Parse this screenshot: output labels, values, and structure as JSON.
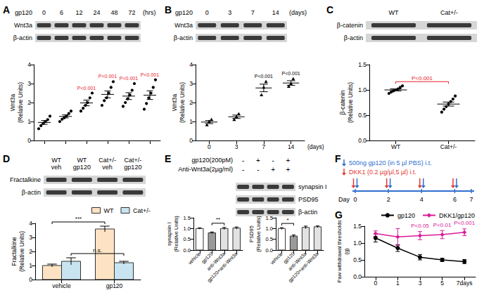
{
  "chart_data": [
    {
      "panel": "A",
      "type": "scatter",
      "blot": {
        "header": "gp120",
        "lanes": [
          "0",
          "6",
          "12",
          "24",
          "48",
          "72"
        ],
        "unit": "(hrs)",
        "rows": [
          "Wnt3a",
          "β-actin"
        ]
      },
      "categories": [
        "0",
        "6",
        "12",
        "24",
        "48",
        "72"
      ],
      "points": [
        [
          0.62,
          0.78,
          0.9,
          1.0,
          1.1,
          1.28
        ],
        [
          1.0,
          1.12,
          1.2,
          1.3,
          1.42,
          1.55
        ],
        [
          1.55,
          1.7,
          1.85,
          2.0,
          2.25,
          2.5
        ],
        [
          1.85,
          2.1,
          2.25,
          2.5,
          2.8,
          3.1
        ],
        [
          1.8,
          2.0,
          2.2,
          2.4,
          2.65,
          3.0
        ],
        [
          1.65,
          1.95,
          2.25,
          2.5,
          2.8,
          3.2
        ]
      ],
      "means": [
        0.95,
        1.27,
        1.98,
        2.43,
        2.34,
        2.39
      ],
      "errors": [
        0.1,
        0.08,
        0.15,
        0.18,
        0.18,
        0.23
      ],
      "color": "#000000",
      "marker": "circle",
      "y_label": "Wnt3a\n(Relative Units)",
      "ylim": [
        0,
        4
      ],
      "yticks": [
        0,
        1,
        2,
        3,
        4
      ],
      "grid": false,
      "tick_labels": "y",
      "annotations": [
        {
          "text": "P<0.001",
          "category": "12",
          "color": "#e8202a"
        },
        {
          "text": "P<0.001",
          "category": "24",
          "color": "#e8202a"
        },
        {
          "text": "P<0.001",
          "category": "48",
          "color": "#e8202a"
        },
        {
          "text": "P<0.001",
          "category": "72",
          "color": "#e8202a"
        }
      ]
    },
    {
      "panel": "B",
      "type": "scatter",
      "blot": {
        "header": "gp120",
        "lanes": [
          "0",
          "3",
          "7",
          "14"
        ],
        "unit": "(days)",
        "rows": [
          "Wnt3a",
          "β-actin"
        ]
      },
      "categories": [
        "0",
        "3",
        "7",
        "14"
      ],
      "x_label": "(days)",
      "points": [
        [
          0.82,
          1.0,
          1.1
        ],
        [
          1.1,
          1.25,
          1.4
        ],
        [
          2.4,
          2.8,
          3.1
        ],
        [
          2.85,
          3.0,
          3.25
        ]
      ],
      "means": [
        0.97,
        1.25,
        2.77,
        3.03
      ],
      "errors": [
        0.08,
        0.09,
        0.2,
        0.12
      ],
      "color": "#000000",
      "marker": "triangle",
      "y_label": "Wnt3a\n(Relative Units)",
      "ylim": [
        0,
        4
      ],
      "yticks": [
        0,
        1,
        2,
        3,
        4
      ],
      "grid": false,
      "annotations": [
        {
          "text": "P<0.001",
          "category": "7",
          "color": "#000000"
        },
        {
          "text": "P<0.001",
          "category": "14",
          "color": "#000000"
        }
      ]
    },
    {
      "panel": "C",
      "type": "scatter",
      "blot": {
        "groups": [
          "WT",
          "Cat+/-"
        ],
        "rows": [
          "β-catenin",
          "β-actin"
        ]
      },
      "categories": [
        "WT",
        "Cat+/-"
      ],
      "points": [
        [
          0.93,
          0.96,
          0.98,
          1.0,
          1.02,
          1.05,
          1.08
        ],
        [
          0.56,
          0.62,
          0.67,
          0.72,
          0.77,
          0.82,
          0.88
        ]
      ],
      "means": [
        1.0,
        0.72
      ],
      "errors": [
        0.02,
        0.04
      ],
      "color": "#000000",
      "marker": "circle",
      "y_label": "β-catenin\n(Relative Units)",
      "ylim": [
        0,
        1.5
      ],
      "yticks": [
        {
          "value": 0,
          "label": "0.0"
        },
        0.5,
        {
          "value": 1,
          "label": "1.0"
        },
        1.5
      ],
      "grid": false,
      "annotations": [
        {
          "text": "P<0.001",
          "from": "WT",
          "to": "Cat+/-",
          "color": "#e8202a"
        }
      ]
    },
    {
      "panel": "D",
      "type": "bar",
      "blot": {
        "lanes": [
          "WT\nveh",
          "WT\ngp120",
          "Cat+/-\nveh",
          "Cat+/-\ngp120"
        ],
        "rows": [
          "Fractalkine",
          "β-actin"
        ]
      },
      "categories": [
        "vehicle",
        "gp120"
      ],
      "series": [
        {
          "name": "WT",
          "color": "#fde3c4",
          "values": [
            1.0,
            3.6
          ],
          "errors": [
            0.1,
            0.2
          ]
        },
        {
          "name": "Cat+/-",
          "color": "#c9e4f1",
          "values": [
            1.3,
            1.2
          ],
          "errors": [
            0.25,
            0.1
          ]
        }
      ],
      "y_label": "Fractalkine\n(Relative Units)",
      "ylim": [
        0,
        4
      ],
      "yticks": [
        0,
        1,
        2,
        3,
        4
      ],
      "grid": false,
      "legend": "top",
      "annotations": [
        {
          "text": "***",
          "series": "WT",
          "from": "vehicle",
          "to": "gp120",
          "color": "#000000"
        },
        {
          "text": "n.s.",
          "series": "Cat+/-",
          "from": "vehicle",
          "to": "gp120",
          "color": "#000000"
        }
      ]
    },
    {
      "panel": "E",
      "type": "bar",
      "blot": {
        "conditions": [
          {
            "label": "gp120(200pM)",
            "signs": [
              "-",
              "+",
              "-",
              "+"
            ]
          },
          {
            "label": "Anti-Wnt3a(2µg/ml)",
            "signs": [
              "-",
              "-",
              "+",
              "+"
            ]
          }
        ],
        "rows": [
          "synapsin I",
          "PSD95",
          "β-actin"
        ]
      },
      "categories": [
        "vehicle",
        "gp120",
        "anti-Wnt3a",
        "gp120+anti-Wnt3a"
      ],
      "values": [
        1.0,
        0.8,
        1.0,
        1.02
      ],
      "errors": [
        0.03,
        0.04,
        0.05,
        0.05
      ],
      "colors": [
        "#ffffff",
        "#9a9a9a",
        "#e2e2e2",
        "#e2e2e2"
      ],
      "y_label": "synapsin I\n(Relative Units)",
      "ylim": [
        0,
        1.5
      ],
      "yticks": [
        {
          "value": 0,
          "label": "0.0"
        },
        0.5,
        {
          "value": 1,
          "label": "1.0"
        },
        1.5
      ],
      "grid": false,
      "annotations": [
        {
          "text": "**",
          "from": "gp120",
          "to": "anti-Wnt3a",
          "color": "#000000"
        }
      ]
    },
    {
      "type": "bar",
      "categories": [
        "vehicle",
        "gp120",
        "anti-Wnt3a",
        "gp120+anti-Wnt3a"
      ],
      "values": [
        1.0,
        0.65,
        1.05,
        1.08
      ],
      "errors": [
        0.04,
        0.05,
        0.06,
        0.04
      ],
      "colors": [
        "#ffffff",
        "#9a9a9a",
        "#e2e2e2",
        "#e2e2e2"
      ],
      "y_label": "PSD95\n(Relative Units)",
      "ylim": [
        0,
        1.5
      ],
      "yticks": [
        {
          "value": 0,
          "label": "0.0"
        },
        0.5,
        {
          "value": 1,
          "label": "1.0"
        },
        1.5
      ],
      "grid": false,
      "annotations": [
        {
          "text": "*",
          "from": "vehicle",
          "to": "gp120",
          "color": "#000000"
        }
      ]
    },
    {
      "panel": "G",
      "type": "line",
      "categories": [
        "0",
        "1",
        "3",
        "5",
        "7days"
      ],
      "series": [
        {
          "name": "gp120",
          "color": "#000000",
          "marker": "circle",
          "values": [
            1.15,
            0.85,
            0.58,
            0.5,
            0.45
          ],
          "errors": [
            0.12,
            0.1,
            0.08,
            0.05,
            0.06
          ]
        },
        {
          "name": "DKK1/gp120",
          "color": "#d81b9a",
          "marker": "diamond",
          "values": [
            1.28,
            1.18,
            1.22,
            1.25,
            1.32
          ],
          "errors": [
            0.08,
            0.25,
            0.12,
            0.12,
            0.1
          ]
        }
      ],
      "y_label": "Paw withdrawal thresholds\n(g)",
      "ylim": [
        0,
        1.5
      ],
      "yticks": [
        {
          "value": 0,
          "label": "0.0"
        },
        0.5,
        {
          "value": 1,
          "label": "1.0"
        },
        1.5
      ],
      "grid": false,
      "legend": "upper right",
      "annotations": [
        {
          "text": "P<0.05",
          "series": "DKK1/gp120",
          "category": "3",
          "color": "#d81b9a"
        },
        {
          "text": "P<0.01",
          "series": "DKK1/gp120",
          "category": "5",
          "color": "#d81b9a"
        },
        {
          "text": "P<0.001",
          "series": "DKK1/gp120",
          "category": "7days",
          "color": "#d81b9a"
        }
      ]
    }
  ],
  "diagram": {
    "panel": "F",
    "lines": [
      {
        "text": "500ng gp120 (in 5 µl PBS) i.t.",
        "color": "#2f6fd0"
      },
      {
        "text": "DKK1 (0.2 µg/µl,5 µl) i.t.",
        "color": "#e53935"
      }
    ],
    "axis_label": "Day",
    "days": [
      0,
      2,
      4,
      6,
      7
    ],
    "injection_days": [
      0,
      2,
      4,
      6
    ]
  }
}
